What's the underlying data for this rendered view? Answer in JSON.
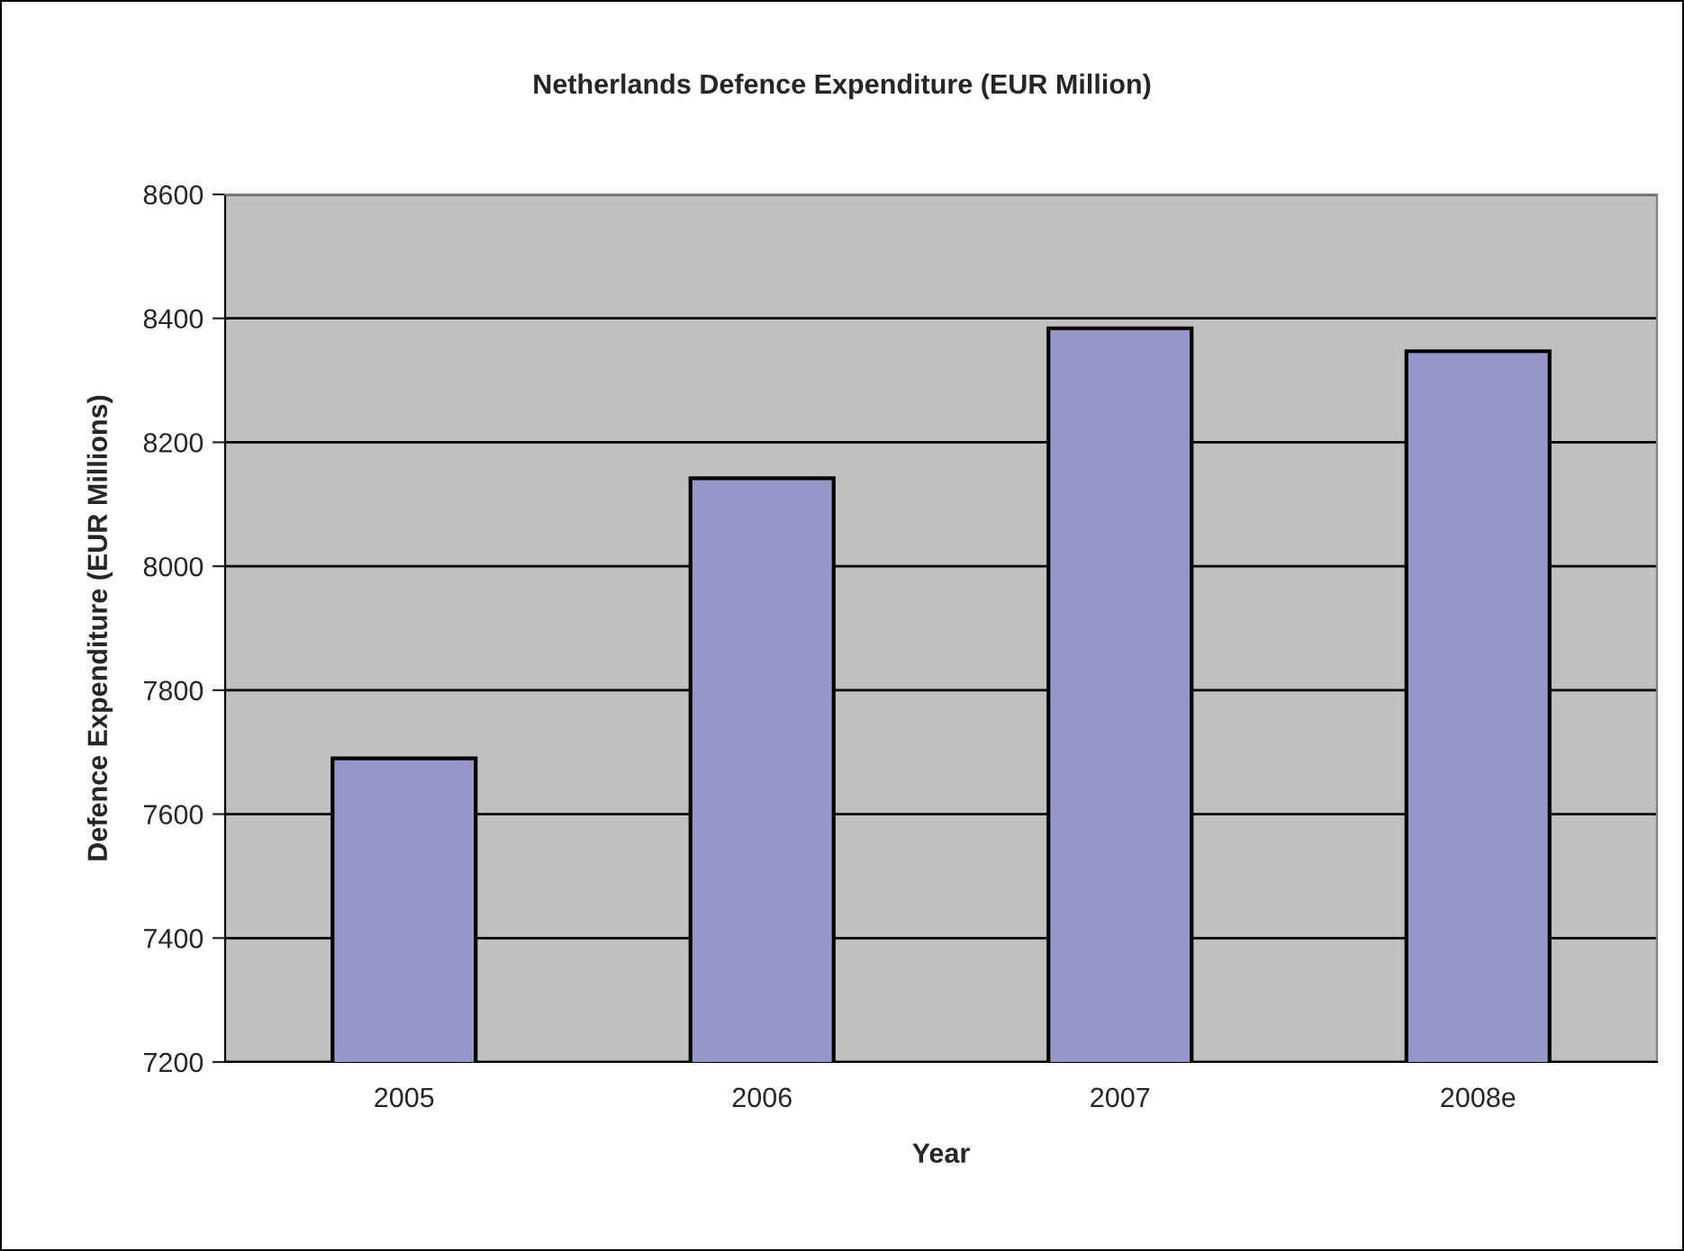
{
  "chart_data": {
    "type": "bar",
    "title": "Netherlands Defence Expenditure (EUR Million)",
    "xlabel": "Year",
    "ylabel": "Defence Expenditure (EUR Millions)",
    "categories": [
      "2005",
      "2006",
      "2007",
      "2008e"
    ],
    "values": [
      7690,
      8142,
      8384,
      8347
    ],
    "color": "#9696c8",
    "ylim": [
      7200,
      8600
    ],
    "yticks": [
      7200,
      7400,
      7600,
      7800,
      8000,
      8200,
      8400,
      8600
    ],
    "grid": "y",
    "legend": false
  }
}
